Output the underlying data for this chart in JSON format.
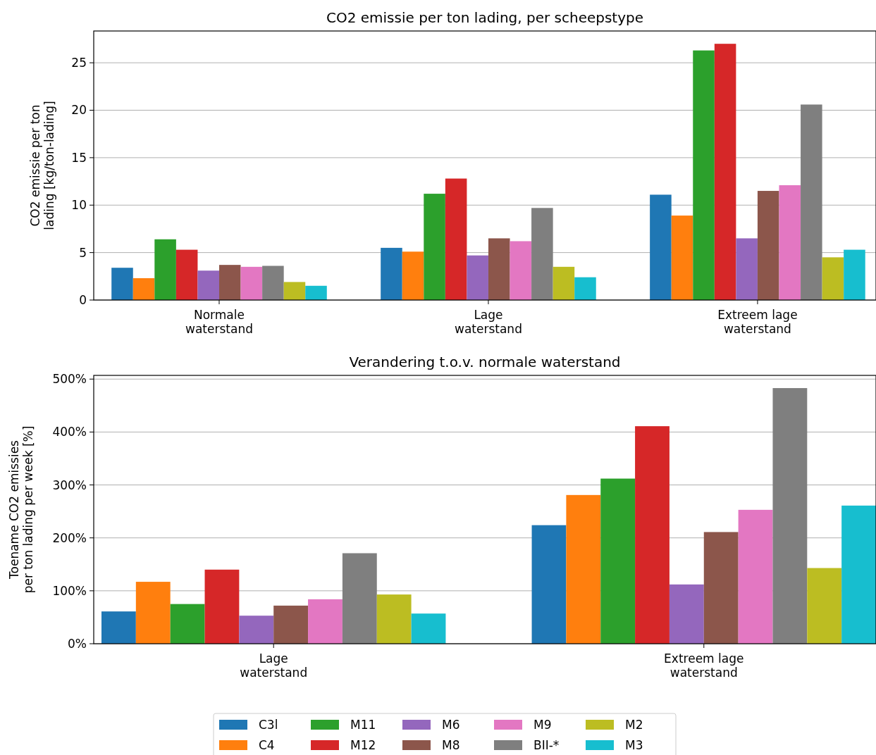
{
  "chart_data": [
    {
      "type": "bar",
      "title": "CO2 emissie per ton lading, per scheepstype",
      "ylabel": "CO2 emissie per ton\nlading [kg/ton-lading]",
      "categories": [
        "Normale\nwaterstand",
        "Lage\nwaterstand",
        "Extreem lage\nwaterstand"
      ],
      "ylim": [
        0,
        28.35
      ],
      "yticks": [
        0,
        5,
        10,
        15,
        20,
        25
      ],
      "grid": "y",
      "series": [
        {
          "color": "#1f77b4",
          "values": [
            3.4,
            5.5,
            11.1
          ]
        },
        {
          "color": "#ff7f0e",
          "values": [
            2.3,
            5.1,
            8.9
          ]
        },
        {
          "color": "#2ca02c",
          "values": [
            6.4,
            11.2,
            26.3
          ]
        },
        {
          "color": "#d62728",
          "values": [
            5.3,
            12.8,
            27.0
          ]
        },
        {
          "color": "#9467bd",
          "values": [
            3.1,
            4.7,
            6.5
          ]
        },
        {
          "color": "#8c564b",
          "values": [
            3.7,
            6.5,
            11.5
          ]
        },
        {
          "color": "#e377c2",
          "values": [
            3.5,
            6.2,
            12.1
          ]
        },
        {
          "color": "#7f7f7f",
          "values": [
            3.6,
            9.7,
            20.6
          ]
        },
        {
          "color": "#bcbd22",
          "values": [
            1.9,
            3.5,
            4.5
          ]
        },
        {
          "color": "#17becf",
          "values": [
            1.5,
            2.4,
            5.3
          ]
        }
      ]
    },
    {
      "type": "bar",
      "title": "Verandering t.o.v. normale waterstand",
      "ylabel": "Toename CO2 emissies\nper ton lading per week [%]",
      "categories": [
        "Lage\nwaterstand",
        "Extreem lage\nwaterstand"
      ],
      "ylim": [
        0,
        507
      ],
      "yticks": [
        {
          "value": 0,
          "label": "0%"
        },
        {
          "value": 100,
          "label": "100%"
        },
        {
          "value": 200,
          "label": "200%"
        },
        {
          "value": 300,
          "label": "300%"
        },
        {
          "value": 400,
          "label": "400%"
        },
        {
          "value": 500,
          "label": "500%"
        }
      ],
      "grid": "y",
      "legend": "bottom",
      "series": [
        {
          "name": "C3l",
          "color": "#1f77b4",
          "values": [
            61,
            224
          ]
        },
        {
          "name": "C4",
          "color": "#ff7f0e",
          "values": [
            117,
            281
          ]
        },
        {
          "name": "M11",
          "color": "#2ca02c",
          "values": [
            75,
            312
          ]
        },
        {
          "name": "M12",
          "color": "#d62728",
          "values": [
            140,
            411
          ]
        },
        {
          "name": "M6",
          "color": "#9467bd",
          "values": [
            53,
            112
          ]
        },
        {
          "name": "M8",
          "color": "#8c564b",
          "values": [
            72,
            211
          ]
        },
        {
          "name": "M9",
          "color": "#e377c2",
          "values": [
            84,
            253
          ]
        },
        {
          "name": "BII-*",
          "color": "#7f7f7f",
          "values": [
            171,
            483
          ]
        },
        {
          "name": "M2",
          "color": "#bcbd22",
          "values": [
            93,
            143
          ]
        },
        {
          "name": "M3",
          "color": "#17becf",
          "values": [
            57,
            261
          ]
        }
      ]
    }
  ]
}
